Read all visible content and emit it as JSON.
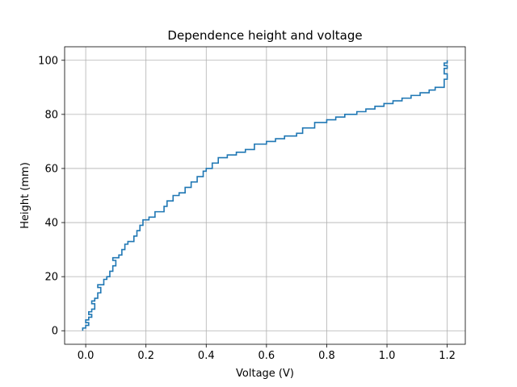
{
  "chart_data": {
    "type": "line",
    "title": "Dependence height and voltage",
    "xlabel": "Voltage (V)",
    "ylabel": "Height (mm)",
    "xlim": [
      -0.07,
      1.26
    ],
    "ylim": [
      -5,
      105
    ],
    "x_ticks": [
      "0.0",
      "0.2",
      "0.4",
      "0.6",
      "0.8",
      "1.0",
      "1.2"
    ],
    "y_ticks": [
      "0",
      "20",
      "40",
      "60",
      "80",
      "100"
    ],
    "grid": true,
    "series": [
      {
        "color": "#1f77b4",
        "points": [
          [
            -0.01,
            0
          ],
          [
            -0.01,
            1
          ],
          [
            0.0,
            1
          ],
          [
            0.0,
            2
          ],
          [
            0.01,
            2
          ],
          [
            0.01,
            3
          ],
          [
            0.0,
            3
          ],
          [
            0.0,
            4
          ],
          [
            0.01,
            4
          ],
          [
            0.01,
            5
          ],
          [
            0.02,
            5
          ],
          [
            0.02,
            6
          ],
          [
            0.01,
            6
          ],
          [
            0.01,
            7
          ],
          [
            0.02,
            7
          ],
          [
            0.02,
            8
          ],
          [
            0.03,
            8
          ],
          [
            0.03,
            10
          ],
          [
            0.02,
            10
          ],
          [
            0.02,
            11
          ],
          [
            0.03,
            11
          ],
          [
            0.03,
            12
          ],
          [
            0.04,
            12
          ],
          [
            0.04,
            14
          ],
          [
            0.05,
            14
          ],
          [
            0.05,
            16
          ],
          [
            0.04,
            16
          ],
          [
            0.04,
            17
          ],
          [
            0.06,
            17
          ],
          [
            0.06,
            19
          ],
          [
            0.07,
            19
          ],
          [
            0.07,
            20
          ],
          [
            0.08,
            20
          ],
          [
            0.08,
            22
          ],
          [
            0.09,
            22
          ],
          [
            0.09,
            24
          ],
          [
            0.1,
            24
          ],
          [
            0.1,
            26
          ],
          [
            0.09,
            26
          ],
          [
            0.09,
            27
          ],
          [
            0.11,
            27
          ],
          [
            0.11,
            28
          ],
          [
            0.12,
            28
          ],
          [
            0.12,
            30
          ],
          [
            0.13,
            30
          ],
          [
            0.13,
            32
          ],
          [
            0.14,
            32
          ],
          [
            0.14,
            33
          ],
          [
            0.16,
            33
          ],
          [
            0.16,
            35
          ],
          [
            0.17,
            35
          ],
          [
            0.17,
            37
          ],
          [
            0.18,
            37
          ],
          [
            0.18,
            39
          ],
          [
            0.19,
            39
          ],
          [
            0.19,
            41
          ],
          [
            0.21,
            41
          ],
          [
            0.21,
            42
          ],
          [
            0.23,
            42
          ],
          [
            0.23,
            44
          ],
          [
            0.26,
            44
          ],
          [
            0.26,
            46
          ],
          [
            0.27,
            46
          ],
          [
            0.27,
            48
          ],
          [
            0.29,
            48
          ],
          [
            0.29,
            50
          ],
          [
            0.31,
            50
          ],
          [
            0.31,
            51
          ],
          [
            0.33,
            51
          ],
          [
            0.33,
            53
          ],
          [
            0.35,
            53
          ],
          [
            0.35,
            55
          ],
          [
            0.37,
            55
          ],
          [
            0.37,
            57
          ],
          [
            0.39,
            57
          ],
          [
            0.39,
            59
          ],
          [
            0.4,
            59
          ],
          [
            0.4,
            60
          ],
          [
            0.42,
            60
          ],
          [
            0.42,
            62
          ],
          [
            0.44,
            62
          ],
          [
            0.44,
            64
          ],
          [
            0.47,
            64
          ],
          [
            0.47,
            65
          ],
          [
            0.5,
            65
          ],
          [
            0.5,
            66
          ],
          [
            0.53,
            66
          ],
          [
            0.53,
            67
          ],
          [
            0.56,
            67
          ],
          [
            0.56,
            69
          ],
          [
            0.6,
            69
          ],
          [
            0.6,
            70
          ],
          [
            0.63,
            70
          ],
          [
            0.63,
            71
          ],
          [
            0.66,
            71
          ],
          [
            0.66,
            72
          ],
          [
            0.7,
            72
          ],
          [
            0.7,
            73
          ],
          [
            0.72,
            73
          ],
          [
            0.72,
            75
          ],
          [
            0.76,
            75
          ],
          [
            0.76,
            77
          ],
          [
            0.8,
            77
          ],
          [
            0.8,
            78
          ],
          [
            0.83,
            78
          ],
          [
            0.83,
            79
          ],
          [
            0.86,
            79
          ],
          [
            0.86,
            80
          ],
          [
            0.9,
            80
          ],
          [
            0.9,
            81
          ],
          [
            0.93,
            81
          ],
          [
            0.93,
            82
          ],
          [
            0.96,
            82
          ],
          [
            0.96,
            83
          ],
          [
            0.99,
            83
          ],
          [
            0.99,
            84
          ],
          [
            1.02,
            84
          ],
          [
            1.02,
            85
          ],
          [
            1.05,
            85
          ],
          [
            1.05,
            86
          ],
          [
            1.08,
            86
          ],
          [
            1.08,
            87
          ],
          [
            1.11,
            87
          ],
          [
            1.11,
            88
          ],
          [
            1.14,
            88
          ],
          [
            1.14,
            89
          ],
          [
            1.16,
            89
          ],
          [
            1.16,
            90
          ],
          [
            1.19,
            90
          ],
          [
            1.19,
            91
          ],
          [
            1.19,
            93
          ],
          [
            1.2,
            93
          ],
          [
            1.2,
            95
          ],
          [
            1.19,
            95
          ],
          [
            1.19,
            97
          ],
          [
            1.2,
            97
          ],
          [
            1.2,
            98
          ],
          [
            1.19,
            98
          ],
          [
            1.19,
            99
          ],
          [
            1.2,
            99
          ],
          [
            1.2,
            100
          ]
        ]
      }
    ]
  }
}
